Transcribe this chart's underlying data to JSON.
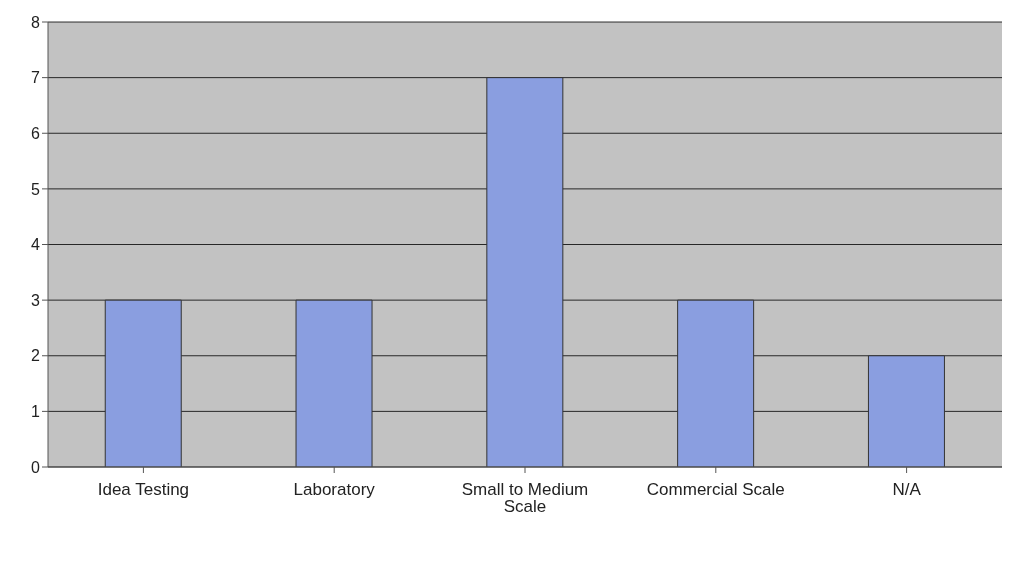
{
  "chart_data": {
    "type": "bar",
    "categories": [
      "Idea Testing",
      "Laboratory",
      "Small to Medium Scale",
      "Commercial Scale",
      "N/A"
    ],
    "values": [
      3,
      3,
      7,
      3,
      2
    ],
    "color": "#8a9ee0",
    "ylim": [
      0,
      8
    ],
    "yticks": [
      0,
      1,
      2,
      3,
      4,
      5,
      6,
      7,
      8
    ],
    "grid": "y"
  }
}
